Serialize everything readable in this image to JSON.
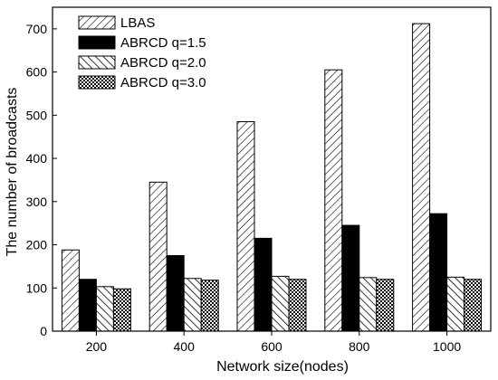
{
  "chart_data": {
    "type": "bar",
    "title": "",
    "xlabel": "Network size(nodes)",
    "ylabel": "The number of broadcasts",
    "categories": [
      "200",
      "400",
      "600",
      "800",
      "1000"
    ],
    "ylim": [
      0,
      750
    ],
    "yticks": [
      0,
      100,
      200,
      300,
      400,
      500,
      600,
      700
    ],
    "grid": false,
    "legend_position": "top-left",
    "series": [
      {
        "name": "LBAS",
        "values": [
          188,
          345,
          485,
          605,
          712
        ],
        "pattern": "hatch-diagonal"
      },
      {
        "name": "ABRCD q=1.5",
        "values": [
          120,
          175,
          215,
          245,
          272
        ],
        "pattern": "solid-black"
      },
      {
        "name": "ABRCD q=2.0",
        "values": [
          103,
          122,
          127,
          124,
          125
        ],
        "pattern": "hatch-backslash"
      },
      {
        "name": "ABRCD q=3.0",
        "values": [
          98,
          118,
          120,
          120,
          120
        ],
        "pattern": "crosshatch"
      }
    ]
  }
}
